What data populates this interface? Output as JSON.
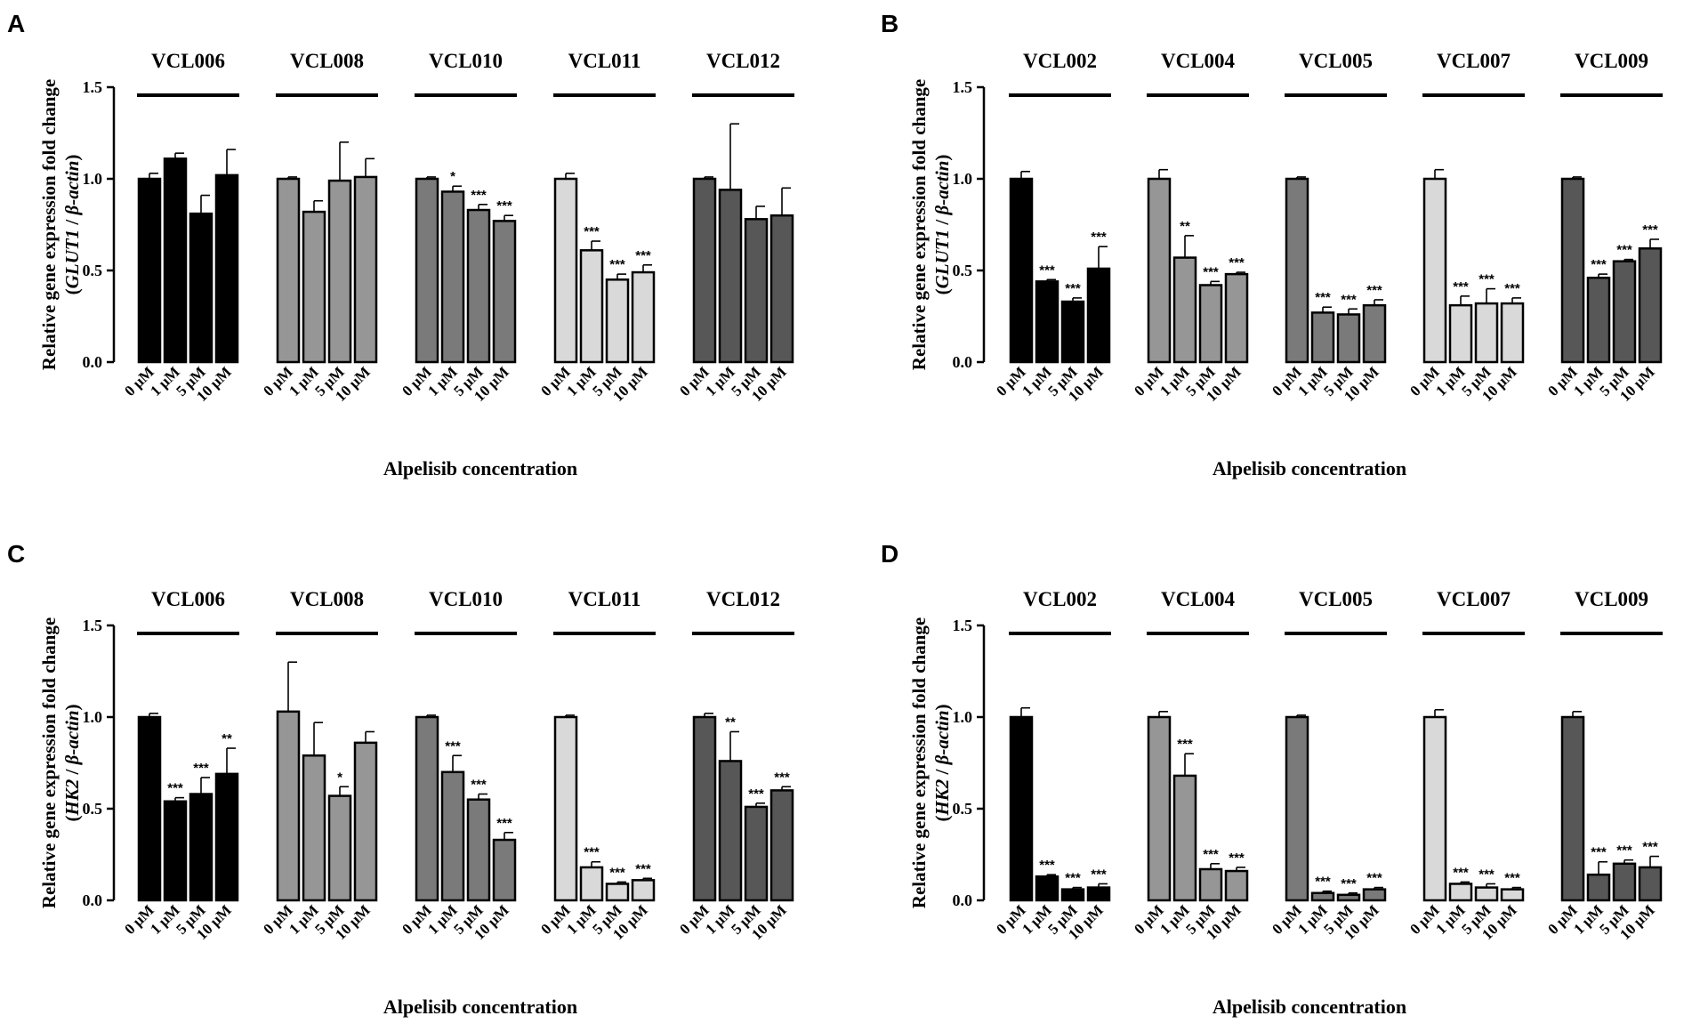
{
  "chart_data": [
    {
      "panel": "A",
      "type": "bar",
      "ylabel": [
        "Relative gene expression fold change",
        "(",
        "GLUT1",
        " / ",
        "β-actin",
        ")"
      ],
      "xlabel": "Alpelisib concentration",
      "ylim": [
        0,
        1.5
      ],
      "yticks": [
        "0.0",
        "0.5",
        "1.0",
        "1.5"
      ],
      "categories": [
        "0 μM",
        "1 μM",
        "5 μM",
        "10 μM"
      ],
      "groups": [
        {
          "name": "VCL006",
          "color": "#000000",
          "values": [
            1.0,
            1.11,
            0.81,
            1.02
          ],
          "errors": [
            0.03,
            0.03,
            0.1,
            0.14
          ],
          "sig": [
            "",
            "",
            "",
            ""
          ]
        },
        {
          "name": "VCL008",
          "color": "#969696",
          "values": [
            1.0,
            0.82,
            0.99,
            1.01
          ],
          "errors": [
            0.01,
            0.06,
            0.21,
            0.1
          ],
          "sig": [
            "",
            "",
            "",
            ""
          ]
        },
        {
          "name": "VCL010",
          "color": "#7a7a7a",
          "values": [
            1.0,
            0.93,
            0.83,
            0.77
          ],
          "errors": [
            0.01,
            0.03,
            0.03,
            0.03
          ],
          "sig": [
            "",
            "*",
            "***",
            "***"
          ]
        },
        {
          "name": "VCL011",
          "color": "#d9d9d9",
          "values": [
            1.0,
            0.61,
            0.45,
            0.49
          ],
          "errors": [
            0.03,
            0.05,
            0.03,
            0.04
          ],
          "sig": [
            "",
            "***",
            "***",
            "***"
          ]
        },
        {
          "name": "VCL012",
          "color": "#575757",
          "values": [
            1.0,
            0.94,
            0.78,
            0.8
          ],
          "errors": [
            0.01,
            0.36,
            0.07,
            0.15
          ],
          "sig": [
            "",
            "",
            "",
            ""
          ]
        }
      ]
    },
    {
      "panel": "B",
      "type": "bar",
      "ylabel": [
        "Relative gene expression fold change",
        "(",
        "GLUT1",
        " / ",
        "β-actin",
        ")"
      ],
      "xlabel": "Alpelisib concentration",
      "ylim": [
        0,
        1.5
      ],
      "yticks": [
        "0.0",
        "0.5",
        "1.0",
        "1.5"
      ],
      "categories": [
        "0 μM",
        "1 μM",
        "5 μM",
        "10 μM"
      ],
      "groups": [
        {
          "name": "VCL002",
          "color": "#000000",
          "values": [
            1.0,
            0.44,
            0.33,
            0.51
          ],
          "errors": [
            0.04,
            0.01,
            0.02,
            0.12
          ],
          "sig": [
            "",
            "***",
            "***",
            "***"
          ]
        },
        {
          "name": "VCL004",
          "color": "#969696",
          "values": [
            1.0,
            0.57,
            0.42,
            0.48
          ],
          "errors": [
            0.05,
            0.12,
            0.02,
            0.01
          ],
          "sig": [
            "",
            "**",
            "***",
            "***"
          ]
        },
        {
          "name": "VCL005",
          "color": "#7a7a7a",
          "values": [
            1.0,
            0.27,
            0.26,
            0.31
          ],
          "errors": [
            0.01,
            0.03,
            0.03,
            0.03
          ],
          "sig": [
            "",
            "***",
            "***",
            "***"
          ]
        },
        {
          "name": "VCL007",
          "color": "#d9d9d9",
          "values": [
            1.0,
            0.31,
            0.32,
            0.32
          ],
          "errors": [
            0.05,
            0.05,
            0.08,
            0.03
          ],
          "sig": [
            "",
            "***",
            "***",
            "***"
          ]
        },
        {
          "name": "VCL009",
          "color": "#575757",
          "values": [
            1.0,
            0.46,
            0.55,
            0.62
          ],
          "errors": [
            0.01,
            0.02,
            0.01,
            0.05
          ],
          "sig": [
            "",
            "***",
            "***",
            "***"
          ]
        }
      ]
    },
    {
      "panel": "C",
      "type": "bar",
      "ylabel": [
        "Relative gene expression fold change",
        "(",
        "HK2",
        " / ",
        "β-actin",
        ")"
      ],
      "xlabel": "Alpelisib concentration",
      "ylim": [
        0,
        1.5
      ],
      "yticks": [
        "0.0",
        "0.5",
        "1.0",
        "1.5"
      ],
      "categories": [
        "0 μM",
        "1 μM",
        "5 μM",
        "10 μM"
      ],
      "groups": [
        {
          "name": "VCL006",
          "color": "#000000",
          "values": [
            1.0,
            0.54,
            0.58,
            0.69
          ],
          "errors": [
            0.02,
            0.02,
            0.09,
            0.14
          ],
          "sig": [
            "",
            "***",
            "***",
            "**"
          ]
        },
        {
          "name": "VCL008",
          "color": "#969696",
          "values": [
            1.03,
            0.79,
            0.57,
            0.86
          ],
          "errors": [
            0.27,
            0.18,
            0.05,
            0.06
          ],
          "sig": [
            "",
            "",
            "*",
            ""
          ]
        },
        {
          "name": "VCL010",
          "color": "#7a7a7a",
          "values": [
            1.0,
            0.7,
            0.55,
            0.33
          ],
          "errors": [
            0.01,
            0.09,
            0.03,
            0.04
          ],
          "sig": [
            "",
            "***",
            "***",
            "***"
          ]
        },
        {
          "name": "VCL011",
          "color": "#d9d9d9",
          "values": [
            1.0,
            0.18,
            0.09,
            0.11
          ],
          "errors": [
            0.01,
            0.03,
            0.01,
            0.01
          ],
          "sig": [
            "",
            "***",
            "***",
            "***"
          ]
        },
        {
          "name": "VCL012",
          "color": "#575757",
          "values": [
            1.0,
            0.76,
            0.51,
            0.6
          ],
          "errors": [
            0.02,
            0.16,
            0.02,
            0.02
          ],
          "sig": [
            "",
            "**",
            "***",
            "***"
          ]
        }
      ]
    },
    {
      "panel": "D",
      "type": "bar",
      "ylabel": [
        "Relative gene expression fold change",
        "(",
        "HK2",
        " / ",
        "β-actin",
        ")"
      ],
      "xlabel": "Alpelisib concentration",
      "ylim": [
        0,
        1.5
      ],
      "yticks": [
        "0.0",
        "0.5",
        "1.0",
        "1.5"
      ],
      "categories": [
        "0 μM",
        "1 μM",
        "5 μM",
        "10 μM"
      ],
      "groups": [
        {
          "name": "VCL002",
          "color": "#000000",
          "values": [
            1.0,
            0.13,
            0.06,
            0.07
          ],
          "errors": [
            0.05,
            0.01,
            0.01,
            0.02
          ],
          "sig": [
            "",
            "***",
            "***",
            "***"
          ]
        },
        {
          "name": "VCL004",
          "color": "#969696",
          "values": [
            1.0,
            0.68,
            0.17,
            0.16
          ],
          "errors": [
            0.03,
            0.12,
            0.03,
            0.02
          ],
          "sig": [
            "",
            "***",
            "***",
            "***"
          ]
        },
        {
          "name": "VCL005",
          "color": "#7a7a7a",
          "values": [
            1.0,
            0.04,
            0.03,
            0.06
          ],
          "errors": [
            0.01,
            0.01,
            0.01,
            0.01
          ],
          "sig": [
            "",
            "***",
            "***",
            "***"
          ]
        },
        {
          "name": "VCL007",
          "color": "#d9d9d9",
          "values": [
            1.0,
            0.09,
            0.07,
            0.06
          ],
          "errors": [
            0.04,
            0.01,
            0.02,
            0.01
          ],
          "sig": [
            "",
            "***",
            "***",
            "***"
          ]
        },
        {
          "name": "VCL009",
          "color": "#575757",
          "values": [
            1.0,
            0.14,
            0.2,
            0.18
          ],
          "errors": [
            0.03,
            0.07,
            0.02,
            0.06
          ],
          "sig": [
            "",
            "***",
            "***",
            "***"
          ]
        }
      ]
    }
  ]
}
